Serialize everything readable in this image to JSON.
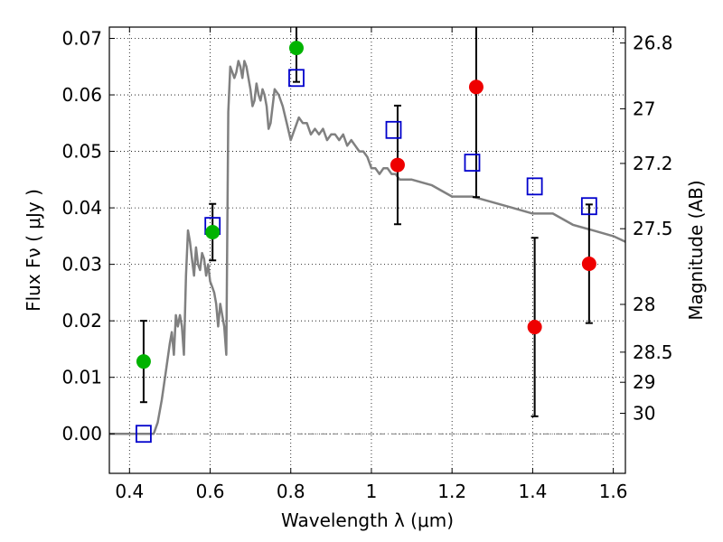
{
  "chart_data": {
    "type": "scatter",
    "xlabel": "Wavelength  λ (μm)",
    "ylabel": "Flux  Fν  ( μJy )",
    "ylabel_right": "Magnitude (AB)",
    "xlim": [
      0.35,
      1.63
    ],
    "ylim": [
      -0.007,
      0.072
    ],
    "grid": true,
    "x_ticks": [
      {
        "value": 0.4,
        "label": "0.4"
      },
      {
        "value": 0.6,
        "label": "0.6"
      },
      {
        "value": 0.8,
        "label": "0.8"
      },
      {
        "value": 1.0,
        "label": "1"
      },
      {
        "value": 1.2,
        "label": "1.2"
      },
      {
        "value": 1.4,
        "label": "1.4"
      },
      {
        "value": 1.6,
        "label": "1.6"
      }
    ],
    "y_ticks": [
      {
        "value": 0.0,
        "label": "0.00"
      },
      {
        "value": 0.01,
        "label": "0.01"
      },
      {
        "value": 0.02,
        "label": "0.02"
      },
      {
        "value": 0.03,
        "label": "0.03"
      },
      {
        "value": 0.04,
        "label": "0.04"
      },
      {
        "value": 0.05,
        "label": "0.05"
      },
      {
        "value": 0.06,
        "label": "0.06"
      },
      {
        "value": 0.07,
        "label": "0.07"
      }
    ],
    "mag_ticks": [
      {
        "mag": 26.8,
        "label": "26.8"
      },
      {
        "mag": 27.0,
        "label": "27"
      },
      {
        "mag": 27.2,
        "label": "27.2"
      },
      {
        "mag": 27.5,
        "label": "27.5"
      },
      {
        "mag": 28.0,
        "label": "28"
      },
      {
        "mag": 28.5,
        "label": "28.5"
      },
      {
        "mag": 29.0,
        "label": "29"
      },
      {
        "mag": 30.0,
        "label": "30"
      }
    ],
    "series": [
      {
        "kind": "model-sed",
        "color": "#808080",
        "x": [
          0.35,
          0.39,
          0.43,
          0.46,
          0.47,
          0.48,
          0.49,
          0.5,
          0.505,
          0.51,
          0.515,
          0.52,
          0.525,
          0.53,
          0.535,
          0.54,
          0.545,
          0.55,
          0.555,
          0.56,
          0.565,
          0.57,
          0.575,
          0.58,
          0.585,
          0.59,
          0.595,
          0.6,
          0.605,
          0.61,
          0.615,
          0.62,
          0.625,
          0.63,
          0.635,
          0.64,
          0.645,
          0.65,
          0.655,
          0.66,
          0.665,
          0.67,
          0.675,
          0.68,
          0.685,
          0.69,
          0.695,
          0.7,
          0.705,
          0.71,
          0.715,
          0.72,
          0.725,
          0.73,
          0.735,
          0.74,
          0.745,
          0.75,
          0.76,
          0.77,
          0.78,
          0.79,
          0.8,
          0.81,
          0.82,
          0.83,
          0.84,
          0.85,
          0.86,
          0.87,
          0.88,
          0.89,
          0.9,
          0.91,
          0.92,
          0.93,
          0.94,
          0.95,
          0.96,
          0.97,
          0.98,
          0.99,
          1.0,
          1.01,
          1.02,
          1.03,
          1.04,
          1.05,
          1.06,
          1.07,
          1.08,
          1.09,
          1.1,
          1.15,
          1.2,
          1.25,
          1.3,
          1.35,
          1.4,
          1.45,
          1.5,
          1.55,
          1.6,
          1.63
        ],
        "y": [
          0.0,
          0.0,
          0.0,
          0.0,
          0.002,
          0.006,
          0.011,
          0.016,
          0.018,
          0.014,
          0.021,
          0.019,
          0.021,
          0.019,
          0.014,
          0.028,
          0.036,
          0.034,
          0.031,
          0.028,
          0.033,
          0.03,
          0.029,
          0.032,
          0.031,
          0.028,
          0.03,
          0.027,
          0.026,
          0.025,
          0.023,
          0.019,
          0.023,
          0.021,
          0.019,
          0.014,
          0.057,
          0.065,
          0.064,
          0.063,
          0.064,
          0.066,
          0.065,
          0.063,
          0.066,
          0.065,
          0.063,
          0.061,
          0.058,
          0.059,
          0.062,
          0.06,
          0.059,
          0.061,
          0.06,
          0.058,
          0.054,
          0.055,
          0.061,
          0.06,
          0.058,
          0.055,
          0.052,
          0.054,
          0.056,
          0.055,
          0.055,
          0.053,
          0.054,
          0.053,
          0.054,
          0.052,
          0.053,
          0.053,
          0.052,
          0.053,
          0.051,
          0.052,
          0.051,
          0.05,
          0.05,
          0.049,
          0.047,
          0.047,
          0.046,
          0.047,
          0.047,
          0.046,
          0.046,
          0.045,
          0.045,
          0.045,
          0.045,
          0.044,
          0.042,
          0.042,
          0.041,
          0.04,
          0.039,
          0.039,
          0.037,
          0.036,
          0.035,
          0.034
        ]
      },
      {
        "kind": "model-photometry",
        "marker": "open-square",
        "color": "#0000cc",
        "x": [
          0.435,
          0.606,
          0.814,
          1.055,
          1.25,
          1.405,
          1.54
        ],
        "y": [
          0.0,
          0.0368,
          0.063,
          0.0538,
          0.048,
          0.0438,
          0.0403
        ]
      },
      {
        "kind": "observed-detection",
        "marker": "filled-circle",
        "color": "#00b300",
        "x": [
          0.435,
          0.606,
          0.814
        ],
        "y": [
          0.0128,
          0.0357,
          0.0683
        ],
        "yerr": [
          0.0072,
          0.005,
          0.006
        ]
      },
      {
        "kind": "observed-upper",
        "marker": "filled-circle",
        "color": "#ee0000",
        "x": [
          1.065,
          1.26,
          1.405,
          1.54
        ],
        "y": [
          0.0476,
          0.0614,
          0.0189,
          0.0301
        ],
        "yerr": [
          0.0105,
          0.0195,
          0.0158,
          0.0105
        ]
      }
    ]
  }
}
